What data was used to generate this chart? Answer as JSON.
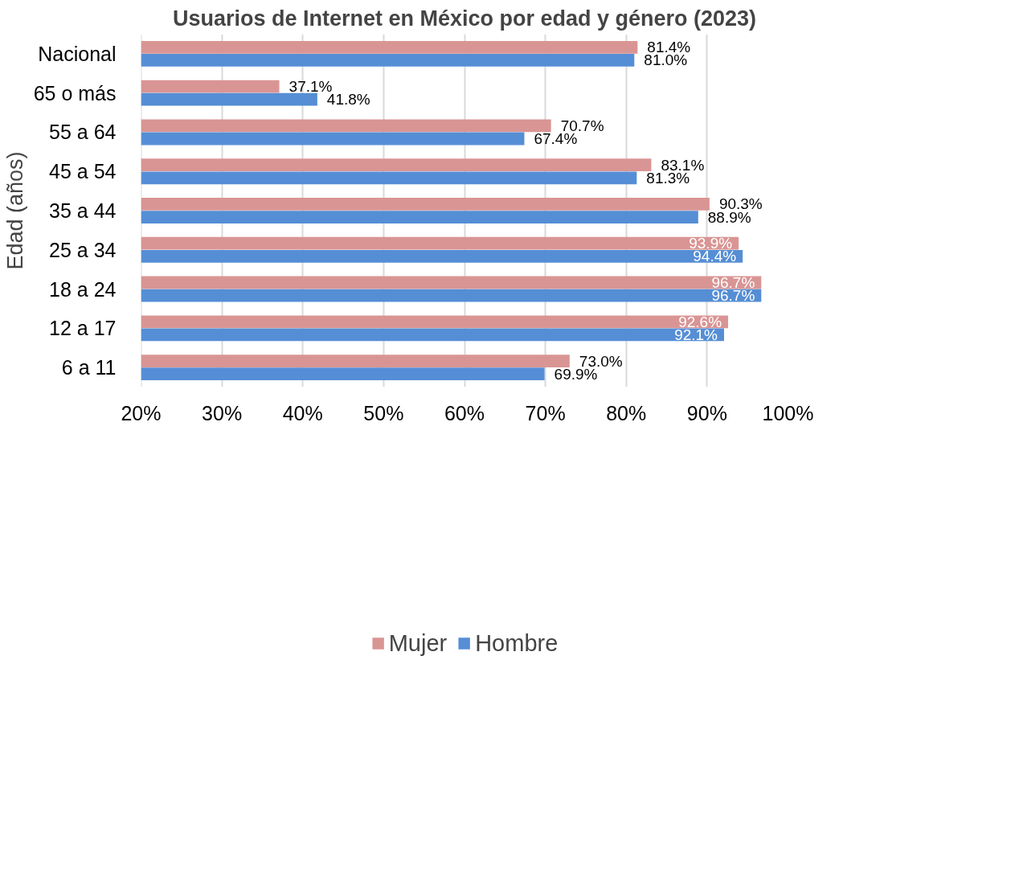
{
  "chart_data": {
    "type": "bar",
    "orientation": "horizontal",
    "title": "Usuarios de Internet en México por edad y género (2023)",
    "ylabel": "Edad (años)",
    "categories": [
      "Nacional",
      "65 o más",
      "55 a 64",
      "45 a 54",
      "35 a 44",
      "25 a 34",
      "18 a 24",
      "12 a 17",
      "6 a 11"
    ],
    "series": [
      {
        "name": "Mujer",
        "color": "#d99594",
        "values": [
          81.4,
          37.1,
          70.7,
          83.1,
          90.3,
          93.9,
          96.7,
          92.6,
          73.0
        ],
        "value_labels": [
          "81.4%",
          "37.1%",
          "70.7%",
          "83.1%",
          "90.3%",
          "93.9%",
          "96.7%",
          "92.6%",
          "73.0%"
        ]
      },
      {
        "name": "Hombre",
        "color": "#558ed5",
        "values": [
          81.0,
          41.8,
          67.4,
          81.3,
          88.9,
          94.4,
          96.7,
          92.1,
          69.9
        ],
        "value_labels": [
          "81.0%",
          "41.8%",
          "67.4%",
          "81.3%",
          "88.9%",
          "94.4%",
          "96.7%",
          "92.1%",
          "69.9%"
        ]
      }
    ],
    "xlim": [
      20,
      100
    ],
    "xticks": [
      {
        "value": 20,
        "label": "20%"
      },
      {
        "value": 30,
        "label": "30%"
      },
      {
        "value": 40,
        "label": "40%"
      },
      {
        "value": 50,
        "label": "50%"
      },
      {
        "value": 60,
        "label": "60%"
      },
      {
        "value": 70,
        "label": "70%"
      },
      {
        "value": 80,
        "label": "80%"
      },
      {
        "value": 90,
        "label": "90%"
      },
      {
        "value": 100,
        "label": "100%"
      }
    ],
    "grid": "x",
    "legend": "bottom"
  }
}
